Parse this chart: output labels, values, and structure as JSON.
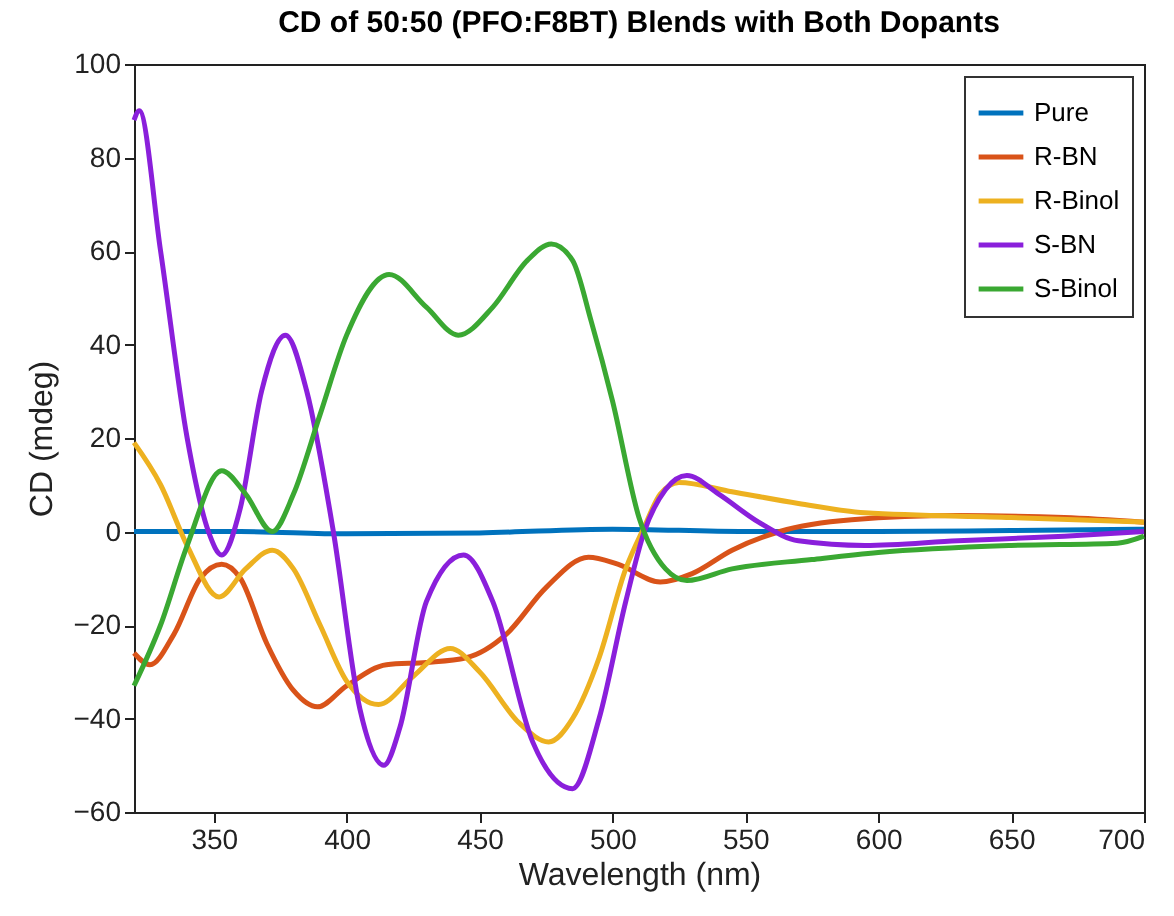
{
  "chart_data": {
    "type": "line",
    "title": "CD of 50:50 (PFO:F8BT) Blends with Both Dopants",
    "xlabel": "Wavelength (nm)",
    "ylabel": "CD (mdeg)",
    "xlim": [
      320,
      700
    ],
    "xticks": [
      350,
      400,
      450,
      500,
      550,
      600,
      650,
      700
    ],
    "ylim": [
      -60,
      100
    ],
    "yticks": [
      -60,
      -40,
      -20,
      0,
      20,
      40,
      60,
      80,
      100
    ],
    "grid": false,
    "legend": "top right",
    "line_style": "solid",
    "series": [
      {
        "name": "Pure",
        "color": "#0072bd",
        "x": [
          320,
          360,
          400,
          450,
          500,
          550,
          600,
          650,
          700
        ],
        "values": [
          0,
          0,
          -0.5,
          -0.3,
          0.5,
          0,
          0,
          0.2,
          0.5
        ]
      },
      {
        "name": "R-BN",
        "color": "#d95319",
        "x": [
          320,
          326,
          335,
          345,
          353,
          360,
          370,
          380,
          389,
          400,
          415,
          430,
          445,
          460,
          475,
          491,
          502,
          518,
          530,
          545,
          563,
          590,
          630,
          670,
          700
        ],
        "values": [
          -26,
          -28.5,
          -22,
          -10,
          -7,
          -10,
          -24,
          -34,
          -37.5,
          -33,
          -28.5,
          -28,
          -27,
          -22,
          -12,
          -5.5,
          -7,
          -10.8,
          -9,
          -4,
          0,
          2.5,
          3.4,
          3,
          2
        ]
      },
      {
        "name": "R-Binol",
        "color": "#edb120",
        "x": [
          320,
          330,
          340,
          352,
          362,
          372,
          380,
          390,
          400,
          412,
          425,
          439,
          450,
          465,
          476,
          485,
          495,
          505,
          512,
          518,
          525,
          545,
          570,
          595,
          650,
          700
        ],
        "values": [
          19,
          10,
          -3,
          -14,
          -8,
          -4,
          -8,
          -20,
          -32,
          -37,
          -31,
          -25,
          -30,
          -41,
          -45,
          -40,
          -27,
          -8,
          1,
          8,
          10.5,
          8.5,
          6,
          4,
          3,
          2
        ]
      },
      {
        "name": "S-BN",
        "color": "#8a1fdb",
        "x": [
          320,
          322,
          330,
          340,
          348,
          353,
          360,
          368,
          377,
          385,
          395,
          405,
          414,
          420,
          430,
          444,
          455,
          470,
          485,
          495,
          505,
          512,
          520,
          528,
          540,
          555,
          570,
          595,
          630,
          670,
          700
        ],
        "values": [
          88,
          90,
          60,
          20,
          0,
          -5,
          5,
          30,
          42,
          30,
          0,
          -38,
          -50,
          -42,
          -15,
          -5,
          -15,
          -45,
          -55,
          -40,
          -15,
          0,
          9,
          12,
          8,
          2,
          -2,
          -3,
          -2,
          -1,
          0
        ]
      },
      {
        "name": "S-Binol",
        "color": "#3aa832",
        "x": [
          320,
          330,
          340,
          353,
          362,
          372,
          380,
          390,
          400,
          416,
          430,
          442,
          455,
          468,
          477,
          485,
          492,
          500,
          510,
          520,
          528,
          545,
          575,
          600,
          650,
          690,
          700
        ],
        "values": [
          -33,
          -20,
          -3,
          13,
          8,
          0,
          8,
          25,
          42,
          55,
          48,
          42,
          48,
          58,
          61.5,
          58,
          45,
          28,
          3,
          -8,
          -10.5,
          -8,
          -6,
          -4.5,
          -3,
          -2.5,
          -1
        ]
      }
    ]
  }
}
